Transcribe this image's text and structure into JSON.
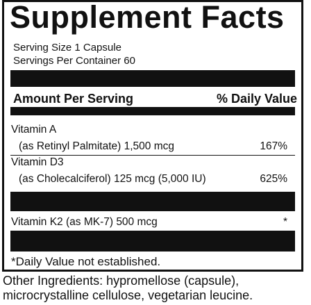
{
  "panel": {
    "title": "Supplement Facts",
    "serving_size": "Serving Size 1 Capsule",
    "servings_per_container": "Servings Per Container 60",
    "header": {
      "amount_label": "Amount Per Serving",
      "dv_label": "% Daily Value"
    },
    "nutrients": [
      {
        "name": "Vitamin A",
        "detail": "(as Retinyl Palmitate) 1,500 mcg",
        "dv": "167%"
      },
      {
        "name": "Vitamin D3",
        "detail": "(as Cholecalciferol) 125 mcg (5,000 IU)",
        "dv": "625%"
      },
      {
        "name": "Vitamin K2 (as MK-7) 500 mcg",
        "dv": "*"
      }
    ],
    "footnote": "*Daily Value not established."
  },
  "other_ingredients": "Other Ingredients: hypromellose (capsule), microcrystalline cellulose, vegetarian leucine."
}
